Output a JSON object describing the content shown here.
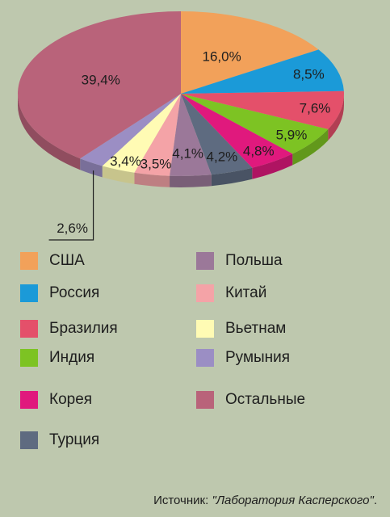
{
  "chart_data": {
    "type": "pie",
    "categories": [
      "США",
      "Россия",
      "Бразилия",
      "Индия",
      "Корея",
      "Турция",
      "Польша",
      "Китай",
      "Вьетнам",
      "Румыния",
      "Остальные"
    ],
    "values": [
      16.0,
      8.5,
      7.6,
      5.9,
      4.8,
      4.2,
      4.1,
      3.5,
      3.4,
      2.6,
      39.4
    ],
    "data_labels": [
      "16,0%",
      "8,5%",
      "7,6%",
      "5,9%",
      "4,8%",
      "4,2%",
      "4,1%",
      "3,5%",
      "3,4%",
      "2,6%",
      "39,4%"
    ],
    "colors": [
      "#f2a15a",
      "#1b9ad8",
      "#e4506a",
      "#7dc323",
      "#e0197d",
      "#5e6b80",
      "#9b7899",
      "#f4a3a7",
      "#fffbb4",
      "#9b8ec4",
      "#b9637a"
    ],
    "legend_placement": "bottom"
  },
  "legend": [
    {
      "label": "США",
      "color": "#f2a15a"
    },
    {
      "label": "Россия",
      "color": "#1b9ad8"
    },
    {
      "label": "Бразилия",
      "color": "#e4506a"
    },
    {
      "label": "Индия",
      "color": "#7dc323"
    },
    {
      "label": "Корея",
      "color": "#e0197d"
    },
    {
      "label": "Турция",
      "color": "#5e6b80"
    },
    {
      "label": "Польша",
      "color": "#9b7899"
    },
    {
      "label": "Китай",
      "color": "#f4a3a7"
    },
    {
      "label": "Вьетнам",
      "color": "#fffbb4"
    },
    {
      "label": "Румыния",
      "color": "#9b8ec4"
    },
    {
      "label": "Остальные",
      "color": "#b9637a"
    }
  ],
  "source": {
    "prefix": "Источник: ",
    "name": "\"Лаборатория Касперского\"",
    "suffix": "."
  }
}
